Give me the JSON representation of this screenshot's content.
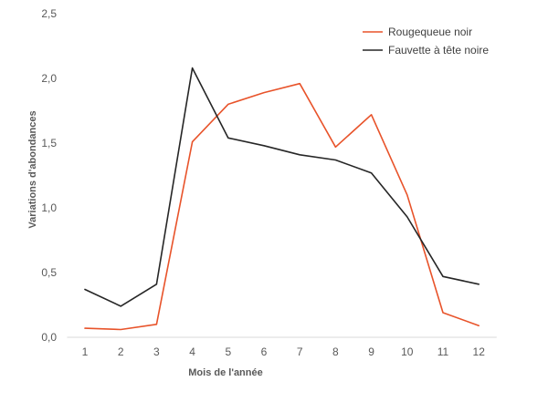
{
  "chart_data": {
    "type": "line",
    "xlabel": "Mois de l'année",
    "ylabel": "Variations d'abondances",
    "categories": [
      "1",
      "2",
      "3",
      "4",
      "5",
      "6",
      "7",
      "8",
      "9",
      "10",
      "11",
      "12"
    ],
    "ylim": [
      0,
      2.5
    ],
    "yticks": [
      "0,0",
      "0,5",
      "1,0",
      "1,5",
      "2,0",
      "2,5"
    ],
    "grid": false,
    "legend_position": "top-right",
    "series": [
      {
        "name": "Rougequeue noir",
        "color": "#e8532a",
        "values": [
          0.07,
          0.06,
          0.1,
          1.51,
          1.8,
          1.89,
          1.96,
          1.47,
          1.72,
          1.1,
          0.19,
          0.09
        ]
      },
      {
        "name": "Fauvette à tête noire",
        "color": "#262626",
        "values": [
          0.37,
          0.24,
          0.41,
          2.08,
          1.54,
          1.48,
          1.41,
          1.37,
          1.27,
          0.93,
          0.47,
          0.41
        ]
      }
    ]
  }
}
